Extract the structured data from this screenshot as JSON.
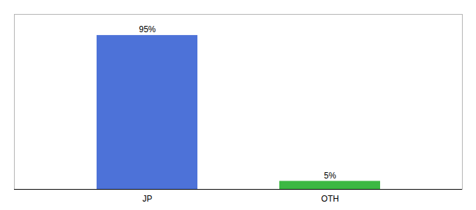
{
  "chart_data": {
    "type": "bar",
    "categories": [
      "JP",
      "OTH"
    ],
    "values": [
      95,
      5
    ],
    "value_labels": [
      "95%",
      "5%"
    ],
    "colors": [
      "#4d72d8",
      "#3cb843"
    ],
    "ylim": [
      0,
      108
    ],
    "data_labels": true,
    "tick_labels": "x",
    "grid": false
  }
}
